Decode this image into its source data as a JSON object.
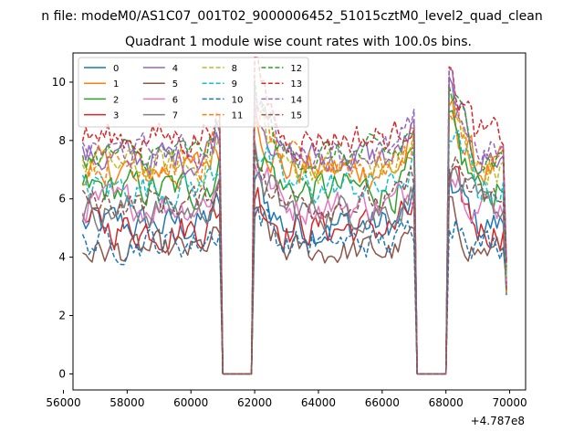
{
  "suptitle": "n file: modeM0/AS1C07_001T02_9000006452_51015cztM0_level2_quad_clean",
  "chart_data": {
    "type": "line",
    "title": "Quadrant 1 module wise count rates with 100.0s bins.",
    "xlabel": "",
    "ylabel": "",
    "x_offset_label": "+4.787e8",
    "xlim": [
      56300,
      70500
    ],
    "ylim": [
      -0.55,
      11.0
    ],
    "xticks": [
      56000,
      58000,
      60000,
      62000,
      64000,
      66000,
      68000,
      70000
    ],
    "xtick_labels": [
      "56000",
      "58000",
      "60000",
      "62000",
      "64000",
      "66000",
      "68000",
      "70000"
    ],
    "yticks": [
      0,
      2,
      4,
      6,
      8,
      10
    ],
    "ytick_labels": [
      "0",
      "2",
      "4",
      "6",
      "8",
      "10"
    ],
    "legend_location": "upper-left",
    "x_start": 56600,
    "x_step": 100,
    "n_points": 134,
    "gaps": [
      [
        61000,
        61900
      ],
      [
        67100,
        68000
      ]
    ],
    "ramp_ends": [
      60900,
      62000,
      67000,
      68100
    ],
    "series": [
      {
        "name": "0",
        "color": "#1f77b4",
        "dash": false,
        "mean": 5.1,
        "noise": 0.55
      },
      {
        "name": "1",
        "color": "#ff7f0e",
        "dash": false,
        "mean": 7.0,
        "noise": 0.55
      },
      {
        "name": "2",
        "color": "#2ca02c",
        "dash": false,
        "mean": 6.3,
        "noise": 0.55
      },
      {
        "name": "3",
        "color": "#d62728",
        "dash": false,
        "mean": 5.0,
        "noise": 0.55
      },
      {
        "name": "4",
        "color": "#9467bd",
        "dash": false,
        "mean": 7.4,
        "noise": 0.5
      },
      {
        "name": "5",
        "color": "#8c564b",
        "dash": false,
        "mean": 4.2,
        "noise": 0.45
      },
      {
        "name": "6",
        "color": "#e377c2",
        "dash": false,
        "mean": 5.8,
        "noise": 0.5
      },
      {
        "name": "7",
        "color": "#7f7f7f",
        "dash": false,
        "mean": 5.6,
        "noise": 0.5
      },
      {
        "name": "8",
        "color": "#bcbd22",
        "dash": true,
        "mean": 7.1,
        "noise": 0.5
      },
      {
        "name": "9",
        "color": "#17becf",
        "dash": true,
        "mean": 6.4,
        "noise": 0.5
      },
      {
        "name": "10",
        "color": "#1f77b4",
        "dash": true,
        "mean": 4.5,
        "noise": 0.45
      },
      {
        "name": "11",
        "color": "#ff7f0e",
        "dash": true,
        "mean": 7.2,
        "noise": 0.5
      },
      {
        "name": "12",
        "color": "#2ca02c",
        "dash": true,
        "mean": 7.5,
        "noise": 0.45
      },
      {
        "name": "13",
        "color": "#d62728",
        "dash": true,
        "mean": 8.1,
        "noise": 0.5
      },
      {
        "name": "14",
        "color": "#9467bd",
        "dash": true,
        "mean": 7.6,
        "noise": 0.45
      },
      {
        "name": "15",
        "color": "#8c564b",
        "dash": true,
        "mean": 5.9,
        "noise": 0.45
      }
    ]
  }
}
